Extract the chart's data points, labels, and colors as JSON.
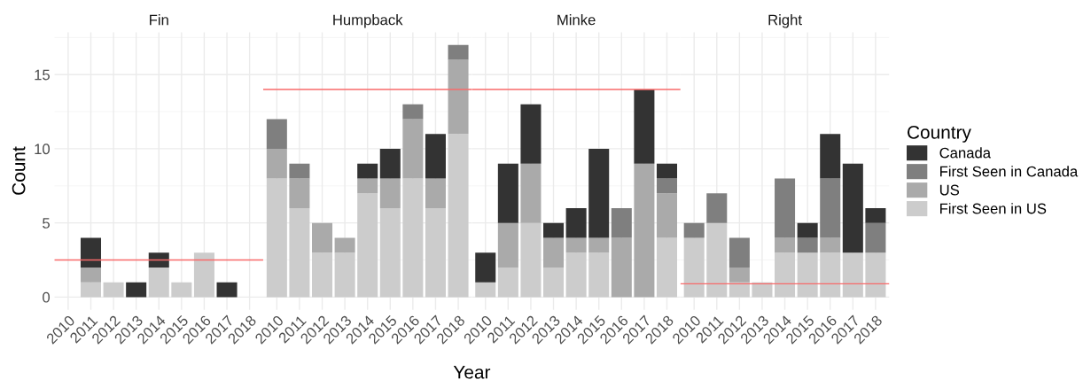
{
  "chart_data": [
    {
      "type": "bar",
      "title": "Fin",
      "ylabel": "Count",
      "stacked": true,
      "grid": true,
      "categories": [
        "2010",
        "2011",
        "2012",
        "2013",
        "2014",
        "2015",
        "2016",
        "2017",
        "2018"
      ],
      "ylim": [
        -0.85,
        17.85
      ],
      "yticks": [
        0,
        5,
        10,
        15
      ],
      "ref_lines": [
        {
          "axis": "y",
          "value": 2.5,
          "color": "#f86a6a"
        }
      ],
      "series": [
        {
          "color": "#cccccc",
          "values": [
            0,
            1,
            1,
            0,
            2,
            1,
            3,
            0,
            0
          ]
        },
        {
          "color": "#aaaaaa",
          "values": [
            0,
            1,
            0,
            0,
            0,
            0,
            0,
            0,
            0
          ]
        },
        {
          "color": "#7f7f7f",
          "values": [
            0,
            0,
            0,
            0,
            0,
            0,
            0,
            0,
            0
          ]
        },
        {
          "color": "#333333",
          "values": [
            0,
            2,
            0,
            1,
            1,
            0,
            0,
            1,
            0
          ]
        }
      ]
    },
    {
      "type": "bar",
      "title": "Humpback",
      "xlabel": "Year",
      "stacked": true,
      "grid": true,
      "tick_labels": "x",
      "categories": [
        "2010",
        "2011",
        "2012",
        "2013",
        "2014",
        "2015",
        "2016",
        "2017",
        "2018"
      ],
      "ylim": [
        -0.85,
        17.85
      ],
      "yticks": [
        0,
        5,
        10,
        15
      ],
      "ref_lines": [
        {
          "axis": "y",
          "value": 14,
          "color": "#f86a6a"
        }
      ],
      "series": [
        {
          "color": "#cccccc",
          "values": [
            8,
            6,
            3,
            3,
            7,
            6,
            8,
            6,
            11
          ]
        },
        {
          "color": "#aaaaaa",
          "values": [
            2,
            2,
            2,
            1,
            1,
            2,
            4,
            2,
            5
          ]
        },
        {
          "color": "#7f7f7f",
          "values": [
            2,
            1,
            0,
            0,
            0,
            0,
            1,
            0,
            1
          ]
        },
        {
          "color": "#333333",
          "values": [
            0,
            0,
            0,
            0,
            1,
            2,
            0,
            3,
            0
          ]
        }
      ]
    },
    {
      "type": "bar",
      "title": "Minke",
      "stacked": true,
      "grid": true,
      "tick_labels": "x",
      "categories": [
        "2010",
        "2011",
        "2012",
        "2013",
        "2014",
        "2015",
        "2016",
        "2017",
        "2018"
      ],
      "ylim": [
        -0.85,
        17.85
      ],
      "yticks": [
        0,
        5,
        10,
        15
      ],
      "ref_lines": [
        {
          "axis": "y",
          "value": 14,
          "color": "#f86a6a"
        }
      ],
      "series": [
        {
          "color": "#cccccc",
          "values": [
            1,
            2,
            5,
            2,
            3,
            3,
            0,
            0,
            4
          ]
        },
        {
          "color": "#aaaaaa",
          "values": [
            0,
            3,
            4,
            2,
            1,
            1,
            4,
            9,
            3
          ]
        },
        {
          "color": "#7f7f7f",
          "values": [
            0,
            0,
            0,
            0,
            0,
            0,
            2,
            0,
            1
          ]
        },
        {
          "color": "#333333",
          "values": [
            2,
            4,
            4,
            1,
            2,
            6,
            0,
            5,
            1
          ]
        }
      ]
    },
    {
      "type": "bar",
      "title": "Right",
      "stacked": true,
      "grid": true,
      "legend": "right",
      "legend_title": "Country",
      "tick_labels": "x",
      "categories": [
        "2010",
        "2011",
        "2012",
        "2013",
        "2014",
        "2015",
        "2016",
        "2017",
        "2018"
      ],
      "ylim": [
        -0.85,
        17.85
      ],
      "yticks": [
        0,
        5,
        10,
        15
      ],
      "ref_lines": [
        {
          "axis": "y",
          "value": 0.9,
          "color": "#f86a6a"
        }
      ],
      "series": [
        {
          "name": "First Seen in US",
          "color": "#cccccc",
          "values": [
            4,
            5,
            1,
            1,
            3,
            3,
            3,
            3,
            3
          ]
        },
        {
          "name": "US",
          "color": "#aaaaaa",
          "values": [
            0,
            0,
            1,
            0,
            1,
            0,
            1,
            0,
            0
          ]
        },
        {
          "name": "First Seen in Canada",
          "color": "#7f7f7f",
          "values": [
            1,
            2,
            2,
            0,
            4,
            1,
            4,
            0,
            2
          ]
        },
        {
          "name": "Canada",
          "color": "#333333",
          "values": [
            0,
            0,
            0,
            0,
            0,
            1,
            3,
            6,
            1
          ]
        }
      ]
    }
  ]
}
